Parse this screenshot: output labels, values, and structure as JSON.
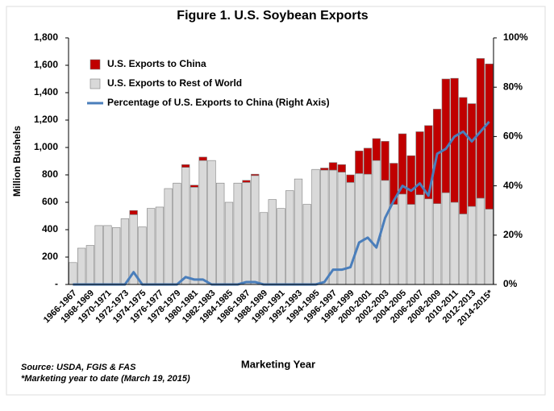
{
  "chart_data": {
    "type": "bar",
    "title": "Figure 1. U.S. Soybean Exports",
    "y_label": "Million Bushels",
    "x_label": "Marketing Year",
    "notes": [
      "Source: USDA, FGIS & FAS",
      "*Marketing year to date (March 19, 2015)"
    ],
    "stacked": true,
    "categories": [
      "1966-1967",
      null,
      "1968-1969",
      null,
      "1970-1971",
      null,
      "1972-1973",
      null,
      "1974-1975",
      null,
      "1976-1977",
      null,
      "1978-1979",
      null,
      "1980-1981",
      null,
      "1982-1983",
      null,
      "1984-1985",
      null,
      "1986-1987",
      null,
      "1988-1989",
      null,
      "1990-1991",
      null,
      "1992-1993",
      null,
      "1994-1995",
      null,
      "1996-1997",
      null,
      "1998-1999",
      null,
      "2000-2001",
      null,
      "2002-2003",
      null,
      "2004-2005",
      null,
      "2006-2007",
      null,
      "2008-2009",
      null,
      "2010-2011",
      null,
      "2012-2013",
      null,
      "2014-2015*"
    ],
    "series": [
      {
        "name": "U.S. Exports to China",
        "type": "bar",
        "color": "#c00000",
        "values": [
          0,
          0,
          0,
          0,
          0,
          0,
          0,
          30,
          0,
          0,
          0,
          0,
          0,
          20,
          15,
          25,
          0,
          0,
          0,
          0,
          15,
          10,
          0,
          0,
          0,
          0,
          0,
          0,
          0,
          15,
          55,
          55,
          55,
          165,
          190,
          160,
          285,
          300,
          440,
          355,
          460,
          535,
          690,
          830,
          905,
          850,
          750,
          1020,
          1060
        ]
      },
      {
        "name": "U.S. Exports to Rest of World",
        "type": "bar",
        "color": "#d9d9d9",
        "values": [
          160,
          265,
          285,
          430,
          430,
          415,
          480,
          510,
          420,
          555,
          565,
          700,
          740,
          855,
          710,
          905,
          905,
          740,
          600,
          740,
          745,
          795,
          525,
          620,
          555,
          685,
          770,
          585,
          840,
          835,
          835,
          820,
          745,
          810,
          805,
          905,
          760,
          585,
          660,
          585,
          655,
          625,
          590,
          670,
          600,
          515,
          570,
          630,
          550
        ]
      },
      {
        "name": "Percentage of U.S. Exports to China (Right Axis)",
        "type": "line",
        "axis": "y2",
        "color": "#4a7ebb",
        "values": [
          0,
          0,
          0,
          0,
          0,
          0,
          0,
          5,
          0,
          0,
          0,
          0,
          0,
          3,
          2,
          2,
          0,
          0,
          0,
          0,
          1,
          1,
          0,
          0,
          0,
          0,
          0,
          0,
          0,
          1,
          6,
          6,
          7,
          17,
          19,
          15,
          27,
          34,
          40,
          38,
          41,
          36,
          53,
          55,
          60,
          62,
          58,
          62,
          66
        ]
      }
    ],
    "ylim": [
      0,
      1800
    ],
    "yticks": [
      {
        "value": 0,
        "label": "-"
      },
      200,
      400,
      600,
      800,
      {
        "value": 1000,
        "label": "1,000"
      },
      {
        "value": 1200,
        "label": "1,200"
      },
      {
        "value": 1400,
        "label": "1,400"
      },
      {
        "value": 1600,
        "label": "1,600"
      },
      {
        "value": 1800,
        "label": "1,800"
      }
    ],
    "y2lim": [
      0,
      100
    ],
    "y2ticks": [
      {
        "value": 0,
        "label": "0%"
      },
      {
        "value": 20,
        "label": "20%"
      },
      {
        "value": 40,
        "label": "40%"
      },
      {
        "value": 60,
        "label": "60%"
      },
      {
        "value": 80,
        "label": "80%"
      },
      {
        "value": 100,
        "label": "100%"
      }
    ],
    "legend": "top-left"
  }
}
